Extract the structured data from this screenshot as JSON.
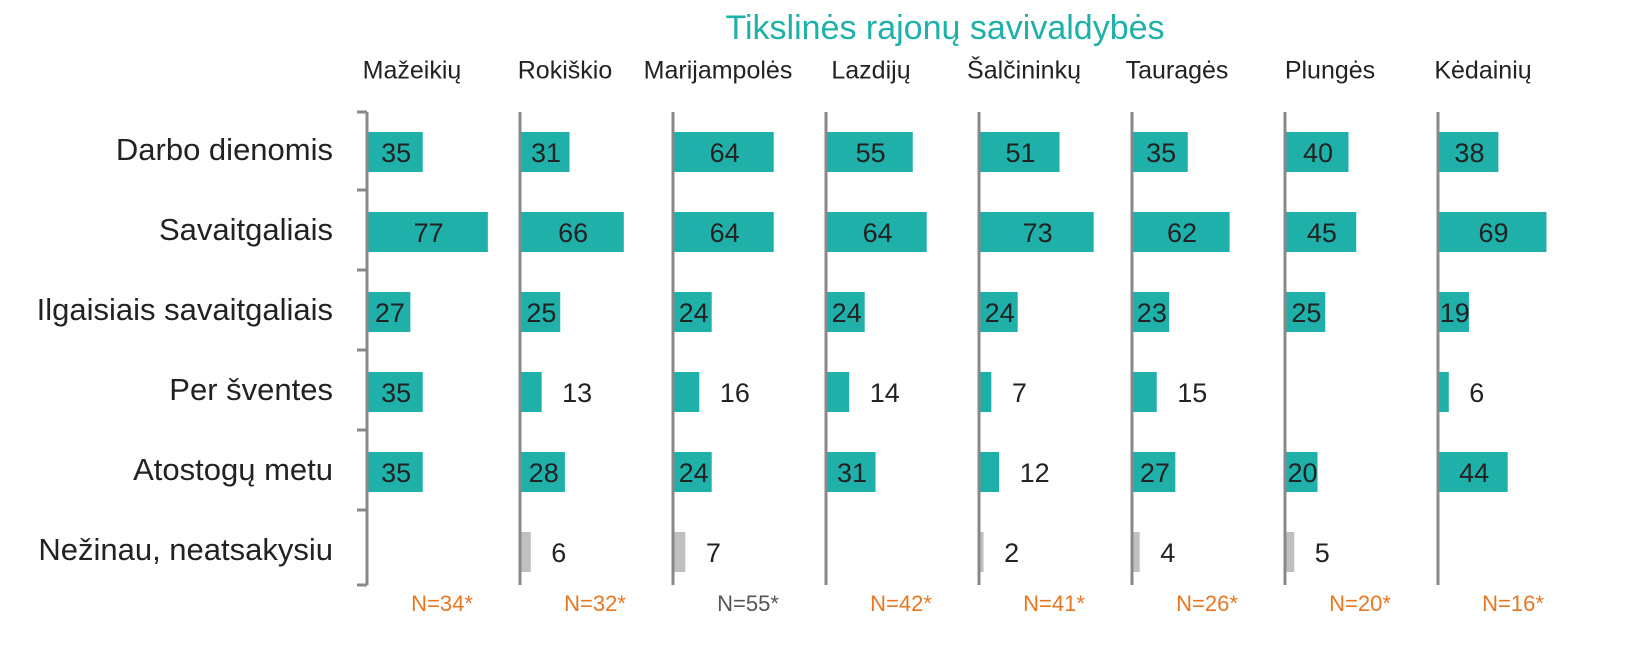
{
  "chart_data": {
    "type": "bar",
    "title": "Tikslinės rajonų savivaldybės",
    "title_color": "#1fb0aa",
    "categories": [
      "Darbo dienomis",
      "Savaitgaliais",
      "Ilgaisiais savaitgaliais",
      "Per šventes",
      "Atostogų metu",
      "Nežinau, neatsakysiu"
    ],
    "category_colors": [
      "#1fb0aa",
      "#1fb0aa",
      "#1fb0aa",
      "#1fb0aa",
      "#1fb0aa",
      "#c0c0c0"
    ],
    "series": [
      {
        "name": "Mažeikių",
        "values": [
          35,
          77,
          27,
          35,
          35,
          null
        ],
        "note": "N=34*",
        "note_color": "#e87722"
      },
      {
        "name": "Rokiškio",
        "values": [
          31,
          66,
          25,
          13,
          28,
          6
        ],
        "note": "N=32*",
        "note_color": "#e87722"
      },
      {
        "name": "Marijampolės",
        "values": [
          64,
          64,
          24,
          16,
          24,
          7
        ],
        "note": "N=55*",
        "note_color": "#555555"
      },
      {
        "name": "Lazdijų",
        "values": [
          55,
          64,
          24,
          14,
          31,
          null
        ],
        "note": "N=42*",
        "note_color": "#e87722"
      },
      {
        "name": "Šalčininkų",
        "values": [
          51,
          73,
          24,
          7,
          12,
          2
        ],
        "note": "N=41*",
        "note_color": "#e87722"
      },
      {
        "name": "Tauragės",
        "values": [
          35,
          62,
          23,
          15,
          27,
          4
        ],
        "note": "N=26*",
        "note_color": "#e87722"
      },
      {
        "name": "Plungės",
        "values": [
          40,
          45,
          25,
          null,
          20,
          5
        ],
        "note": "N=20*",
        "note_color": "#e87722"
      },
      {
        "name": "Kėdainių",
        "values": [
          38,
          69,
          19,
          6,
          44,
          null
        ],
        "note": "N=16*",
        "note_color": "#e87722"
      }
    ]
  }
}
